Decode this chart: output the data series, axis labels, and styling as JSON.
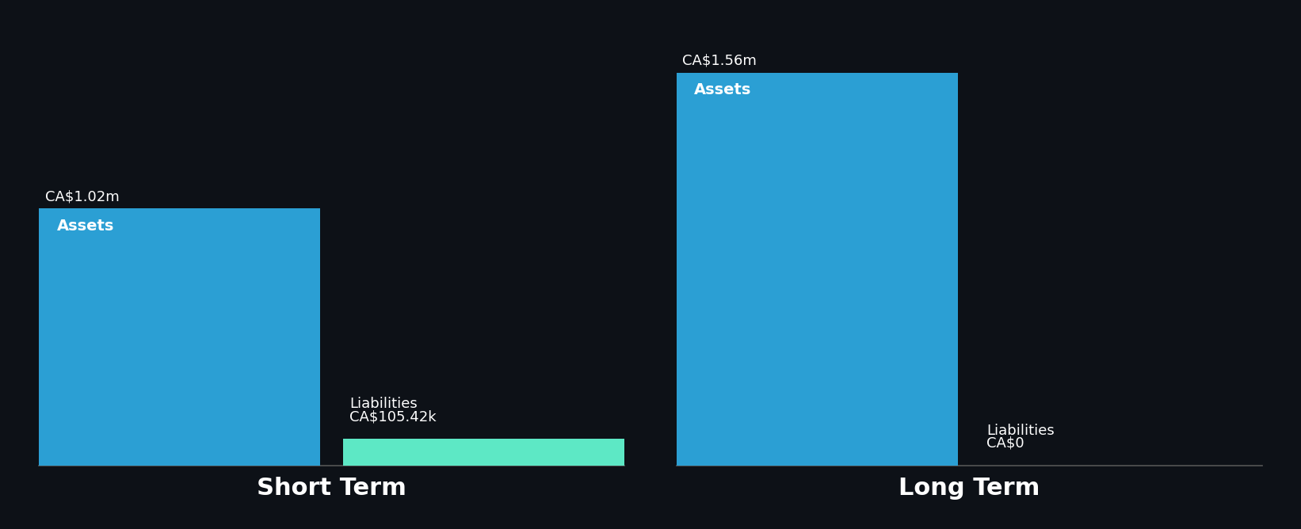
{
  "background_color": "#0d1117",
  "short_term": {
    "assets_value": 1.02,
    "assets_label": "CA$1.02m",
    "assets_color": "#2b9fd4",
    "liabilities_value": 0.10542,
    "liabilities_label": "CA$105.42k",
    "liabilities_color": "#5de8c5",
    "title": "Short Term",
    "bar_label": "Assets",
    "liabilities_bar_label": "Liabilities"
  },
  "long_term": {
    "assets_value": 1.56,
    "assets_label": "CA$1.56m",
    "assets_color": "#2b9fd4",
    "liabilities_value": 0.0,
    "liabilities_label": "CA$0",
    "liabilities_color": "#5de8c5",
    "title": "Long Term",
    "bar_label": "Assets",
    "liabilities_bar_label": "Liabilities"
  },
  "text_color": "#ffffff",
  "axis_line_color": "#555555",
  "title_fontsize": 22,
  "label_fontsize": 13,
  "value_fontsize": 13,
  "bar_label_fontsize": 14,
  "y_max": 1.68
}
